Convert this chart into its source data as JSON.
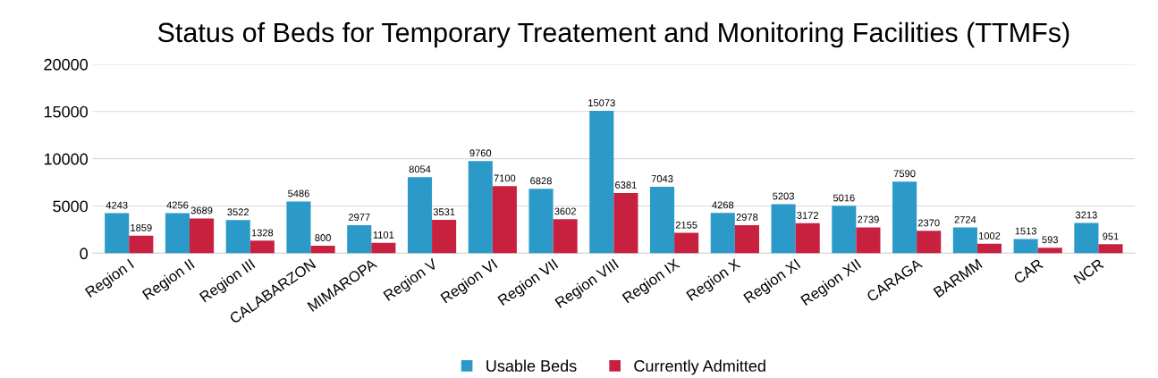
{
  "chart_data": {
    "type": "bar",
    "title": "Status of Beds for Temporary Treatement and Monitoring Facilities (TTMFs)",
    "categories": [
      "Region I",
      "Region II",
      "Region III",
      "CALABARZON",
      "MIMAROPA",
      "Region V",
      "Region VI",
      "Region VII",
      "Region VIII",
      "Region IX",
      "Region X",
      "Region XI",
      "Region XII",
      "CARAGA",
      "BARMM",
      "CAR",
      "NCR"
    ],
    "series": [
      {
        "name": "Usable Beds",
        "color": "#2b9ac8",
        "values": [
          4243,
          4256,
          3522,
          5486,
          2977,
          8054,
          9760,
          6828,
          15073,
          7043,
          4268,
          5203,
          5016,
          7590,
          2724,
          1513,
          3213
        ]
      },
      {
        "name": "Currently Admitted",
        "color": "#c8213f",
        "values": [
          1859,
          3689,
          1328,
          800,
          1101,
          3531,
          7100,
          3602,
          6381,
          2155,
          2978,
          3172,
          2739,
          2370,
          1002,
          593,
          951
        ]
      }
    ],
    "ylim": [
      0,
      20000
    ],
    "yticks": [
      0,
      5000,
      10000,
      15000,
      20000
    ],
    "grid": "y",
    "legend": "bottom",
    "data_labels": true
  }
}
